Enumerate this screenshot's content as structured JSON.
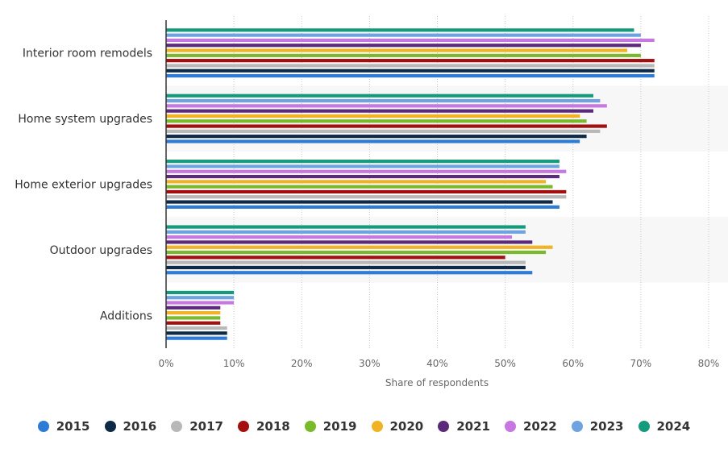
{
  "chart_data": {
    "type": "bar",
    "orientation": "horizontal",
    "xlabel": "Share of respondents",
    "xlim": [
      0,
      80
    ],
    "x_ticks": [
      "0%",
      "10%",
      "20%",
      "30%",
      "40%",
      "50%",
      "60%",
      "70%",
      "80%"
    ],
    "grid": true,
    "legend_position": "bottom",
    "categories": [
      "Interior room remodels",
      "Home system upgrades",
      "Home exterior upgrades",
      "Outdoor upgrades",
      "Additions"
    ],
    "series": [
      {
        "name": "2015",
        "color": "#2e7bd6",
        "values": [
          72,
          61,
          58,
          54,
          9
        ]
      },
      {
        "name": "2016",
        "color": "#0e2a47",
        "values": [
          72,
          62,
          57,
          53,
          9
        ]
      },
      {
        "name": "2017",
        "color": "#b8b8b8",
        "values": [
          72,
          64,
          59,
          53,
          9
        ]
      },
      {
        "name": "2018",
        "color": "#a30e0e",
        "values": [
          72,
          65,
          59,
          50,
          8
        ]
      },
      {
        "name": "2019",
        "color": "#7ab82c",
        "values": [
          70,
          62,
          57,
          56,
          8
        ]
      },
      {
        "name": "2020",
        "color": "#f0b323",
        "values": [
          68,
          61,
          56,
          57,
          8
        ]
      },
      {
        "name": "2021",
        "color": "#5c2a7a",
        "values": [
          70,
          63,
          58,
          54,
          8
        ]
      },
      {
        "name": "2022",
        "color": "#c678e0",
        "values": [
          72,
          65,
          59,
          51,
          10
        ]
      },
      {
        "name": "2023",
        "color": "#6fa3e0",
        "values": [
          70,
          64,
          58,
          53,
          10
        ]
      },
      {
        "name": "2024",
        "color": "#159a7c",
        "values": [
          69,
          63,
          58,
          53,
          10
        ]
      }
    ]
  }
}
